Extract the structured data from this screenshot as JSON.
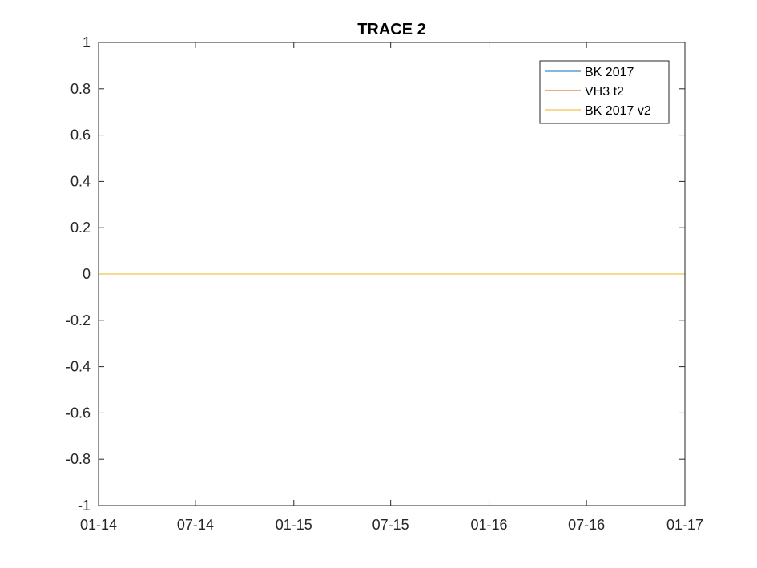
{
  "chart_data": {
    "type": "line",
    "title": "TRACE 2",
    "xlabel": "",
    "ylabel": "",
    "x_axis": {
      "type": "date",
      "range": [
        "2014-01-01",
        "2017-01-01"
      ],
      "ticks": [
        {
          "date": "2014-01-01",
          "label": "01-14"
        },
        {
          "date": "2014-07-01",
          "label": "07-14"
        },
        {
          "date": "2015-01-01",
          "label": "01-15"
        },
        {
          "date": "2015-07-01",
          "label": "07-15"
        },
        {
          "date": "2016-01-01",
          "label": "01-16"
        },
        {
          "date": "2016-07-01",
          "label": "07-16"
        },
        {
          "date": "2017-01-01",
          "label": "01-17"
        }
      ]
    },
    "y_axis": {
      "range": [
        -1,
        1
      ],
      "ticks": [
        {
          "value": 1,
          "label": "1"
        },
        {
          "value": 0.8,
          "label": "0.8"
        },
        {
          "value": 0.6,
          "label": "0.6"
        },
        {
          "value": 0.4,
          "label": "0.4"
        },
        {
          "value": 0.2,
          "label": "0.2"
        },
        {
          "value": 0,
          "label": "0"
        },
        {
          "value": -0.2,
          "label": "-0.2"
        },
        {
          "value": -0.4,
          "label": "-0.4"
        },
        {
          "value": -0.6,
          "label": "-0.6"
        },
        {
          "value": -0.8,
          "label": "-0.8"
        },
        {
          "value": -1,
          "label": "-1"
        }
      ]
    },
    "grid": false,
    "legend_position": "top-right",
    "series": [
      {
        "name": "BK 2017",
        "color": "#0072BD",
        "x": [
          "2014-01-01",
          "2017-01-01"
        ],
        "y": [
          0,
          0
        ]
      },
      {
        "name": "VH3 t2",
        "color": "#D95319",
        "x": [
          "2014-01-01",
          "2017-01-01"
        ],
        "y": [
          0,
          0
        ]
      },
      {
        "name": "BK 2017 v2",
        "color": "#EDB120",
        "x": [
          "2014-01-01",
          "2017-01-01"
        ],
        "y": [
          0,
          0
        ]
      }
    ]
  }
}
